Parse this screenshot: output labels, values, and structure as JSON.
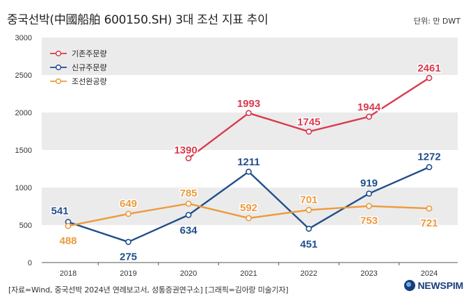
{
  "header": {
    "title": "중국선박(中國船舶 600150.SH) 3대 조선 지표 추이",
    "unit": "단위: 만 DWT"
  },
  "footer": {
    "source": "[자료=Wind, 중국선박 2024년 연례보고서, 성통증권연구소] [그래픽=김아랑 미술기자]",
    "brand": "NEWSPIM"
  },
  "colors": {
    "red": "#d83a4e",
    "blue": "#1f4e8c",
    "orange": "#ec9a3c",
    "band": "#ebebeb"
  },
  "chart_data": {
    "type": "line",
    "title": "중국선박(中國船舶 600150.SH) 3대 조선 지표 추이",
    "ylabel": "단위: 만 DWT",
    "xlabel": "",
    "ylim": [
      0,
      3000
    ],
    "yticks": [
      0,
      500,
      1000,
      1500,
      2000,
      2500,
      3000
    ],
    "categories": [
      "2018",
      "2019",
      "2020",
      "2021",
      "2022",
      "2023",
      "2024"
    ],
    "legend_position": "top-left",
    "series": [
      {
        "name": "기존주문량",
        "color": "#d83a4e",
        "values": [
          null,
          null,
          1390,
          1993,
          1745,
          1944,
          2461
        ]
      },
      {
        "name": "신규주문량",
        "color": "#1f4e8c",
        "values": [
          541,
          275,
          634,
          1211,
          451,
          919,
          1272
        ]
      },
      {
        "name": "조선완공량",
        "color": "#ec9a3c",
        "values": [
          488,
          649,
          785,
          592,
          701,
          753,
          721
        ]
      }
    ]
  }
}
